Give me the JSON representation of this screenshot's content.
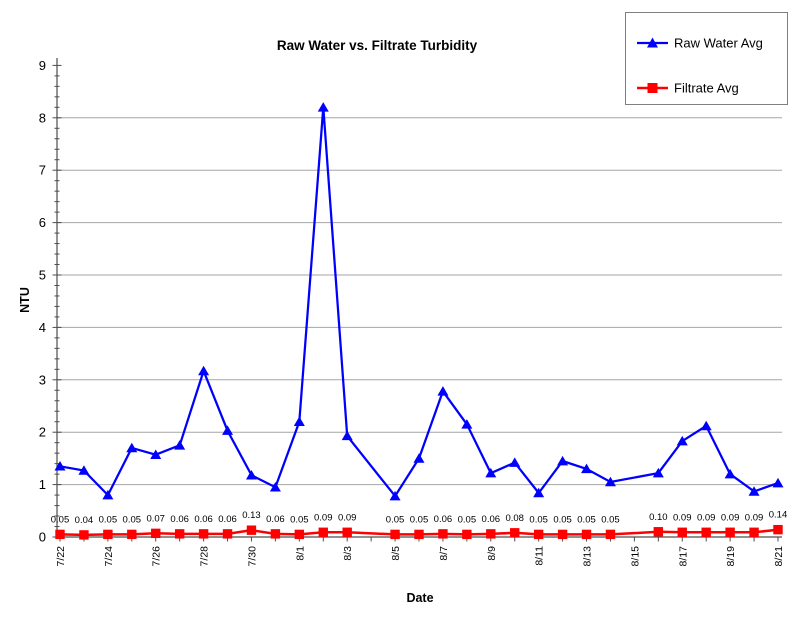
{
  "chart_data": {
    "type": "line",
    "title": "Raw Water vs. Filtrate Turbidity",
    "xlabel": "Date",
    "ylabel": "NTU",
    "ylim": [
      0,
      9
    ],
    "y_ticks": [
      0,
      1,
      2,
      3,
      4,
      5,
      6,
      7,
      8,
      9
    ],
    "grid": true,
    "legend_position": "top-right",
    "x_tick_labels": [
      "7/22",
      "7/24",
      "7/26",
      "7/28",
      "7/30",
      "8/1",
      "8/3",
      "8/5",
      "8/7",
      "8/9",
      "8/11",
      "8/13",
      "8/15",
      "8/17",
      "8/19",
      "8/21"
    ],
    "x_tick_offsets": [
      0,
      2,
      4,
      6,
      8,
      10,
      12,
      14,
      16,
      18,
      20,
      22,
      24,
      26,
      28,
      30
    ],
    "dates": [
      "7/22",
      "7/23",
      "7/24",
      "7/25",
      "7/26",
      "7/27",
      "7/28",
      "7/29",
      "7/30",
      "7/31",
      "8/1",
      "8/2",
      "8/3",
      "8/5",
      "8/6",
      "8/7",
      "8/8",
      "8/9",
      "8/10",
      "8/11",
      "8/12",
      "8/13",
      "8/14",
      "8/16",
      "8/17",
      "8/18",
      "8/19",
      "8/20",
      "8/21"
    ],
    "day_offsets": [
      0,
      1,
      2,
      3,
      4,
      5,
      6,
      7,
      8,
      9,
      10,
      11,
      12,
      14,
      15,
      16,
      17,
      18,
      19,
      20,
      21,
      22,
      23,
      25,
      26,
      27,
      28,
      29,
      30
    ],
    "series": [
      {
        "name": "Raw Water Avg",
        "color": "#0000ff",
        "marker": "triangle",
        "values": [
          1.35,
          1.27,
          0.8,
          1.7,
          1.57,
          1.75,
          3.17,
          2.03,
          1.18,
          0.95,
          2.2,
          8.2,
          1.93,
          0.78,
          1.5,
          2.78,
          2.15,
          1.22,
          1.42,
          0.84,
          1.45,
          1.3,
          1.05,
          1.22,
          1.83,
          2.12,
          1.2,
          0.87,
          1.03
        ]
      },
      {
        "name": "Filtrate Avg",
        "color": "#ff0000",
        "marker": "square",
        "values": [
          0.05,
          0.04,
          0.05,
          0.05,
          0.07,
          0.06,
          0.06,
          0.06,
          0.13,
          0.06,
          0.05,
          0.09,
          0.09,
          0.05,
          0.05,
          0.06,
          0.05,
          0.06,
          0.08,
          0.05,
          0.05,
          0.05,
          0.05,
          0.1,
          0.09,
          0.09,
          0.09,
          0.09,
          0.14
        ],
        "data_labels": [
          "0.05",
          "0.04",
          "0.05",
          "0.05",
          "0.07",
          "0.06",
          "0.06",
          "0.06",
          "0.13",
          "0.06",
          "0.05",
          "0.09",
          "0.09",
          "0.05",
          "0.05",
          "0.06",
          "0.05",
          "0.06",
          "0.08",
          "0.05",
          "0.05",
          "0.05",
          "0.05",
          "0.10",
          "0.09",
          "0.09",
          "0.09",
          "0.09",
          "0.14"
        ]
      }
    ]
  }
}
